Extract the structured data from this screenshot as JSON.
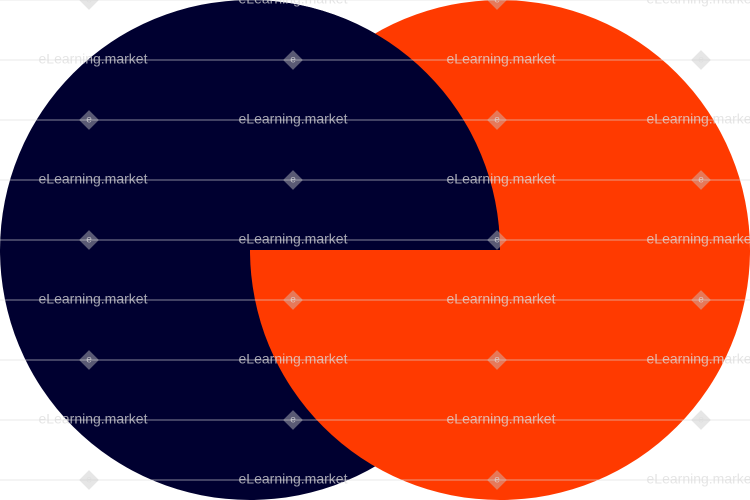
{
  "watermark": "eLearning.market",
  "watermark_mark": "e"
}
